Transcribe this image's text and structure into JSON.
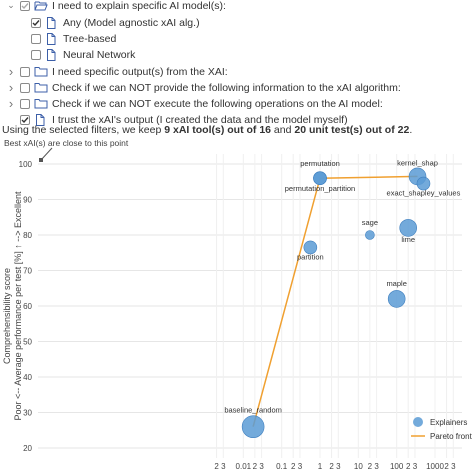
{
  "filters": {
    "rows": [
      {
        "indent": 0,
        "chevron": "expanded",
        "checkbox": "partial",
        "icon": "folder-open",
        "label": "I need to explain specific AI model(s):"
      },
      {
        "indent": 1,
        "chevron": "",
        "checkbox": "checked",
        "icon": "file",
        "label": "Any (Model agnostic xAI alg.)"
      },
      {
        "indent": 1,
        "chevron": "",
        "checkbox": "unchecked",
        "icon": "file",
        "label": "Tree-based"
      },
      {
        "indent": 1,
        "chevron": "",
        "checkbox": "unchecked",
        "icon": "file",
        "label": "Neural Network"
      },
      {
        "indent": 0,
        "chevron": "collapsed",
        "checkbox": "unchecked",
        "icon": "folder",
        "label": "I need specific output(s) from the XAI:"
      },
      {
        "indent": 0,
        "chevron": "collapsed",
        "checkbox": "unchecked",
        "icon": "folder",
        "label": "Check if we can NOT provide the following information to the xAI algorithm:"
      },
      {
        "indent": 0,
        "chevron": "collapsed",
        "checkbox": "unchecked",
        "icon": "folder",
        "label": "Check if we can NOT execute the following operations on the AI model:"
      },
      {
        "indent": 0,
        "chevron": "",
        "checkbox": "checked",
        "icon": "file",
        "label": "I trust the xAI's output (I created the data and the model myself)"
      }
    ]
  },
  "summary": {
    "prefix": "Using the selected filters, we keep ",
    "tools": "9 xAI tool(s) out of 16",
    "middle": " and ",
    "tests": "20 unit test(s) out of 22",
    "suffix": "."
  },
  "chart_data": {
    "type": "scatter",
    "annotation": "Best xAI(s) are close to this point",
    "ylabel_line1": "Comprehensibility score",
    "ylabel_line2": "Poor <--  Average performance per test [%] ↑ --> Excellent",
    "y_ticks": [
      "100",
      "90",
      "80",
      "70",
      "60",
      "50",
      "40",
      "30",
      "20"
    ],
    "ylim": [
      20,
      100
    ],
    "x_ticks": [
      "2",
      "3",
      "0.01",
      "2",
      "3",
      "0.1",
      "2",
      "3",
      "1",
      "2",
      "3",
      "10",
      "2",
      "3",
      "100",
      "2",
      "3",
      "1000",
      "2",
      "3"
    ],
    "x_scale": "log",
    "legend": {
      "explainers": "Explainers",
      "pareto": "Pareto front",
      "placement": "bottom-right"
    },
    "colors": {
      "points": "#5b9bd5",
      "pareto": "#f0a030"
    },
    "points": [
      {
        "name": "baseline_random",
        "x": 0.018,
        "y": 26,
        "size": "large"
      },
      {
        "name": "partition",
        "x": 0.56,
        "y": 76.5,
        "size": "small"
      },
      {
        "name": "permutation",
        "x": 1.0,
        "y": 96,
        "size": "small"
      },
      {
        "name": "permutation_partition",
        "x": 1.0,
        "y": 96,
        "size": "small"
      },
      {
        "name": "kernel_shap",
        "x": 350,
        "y": 96.5,
        "size": "medium"
      },
      {
        "name": "exact_shapley_values",
        "x": 500,
        "y": 94.5,
        "size": "small"
      },
      {
        "name": "sage",
        "x": 20,
        "y": 80,
        "size": "tiny"
      },
      {
        "name": "lime",
        "x": 200,
        "y": 82,
        "size": "medium"
      },
      {
        "name": "maple",
        "x": 100,
        "y": 62,
        "size": "medium"
      }
    ],
    "pareto_front": [
      {
        "x": 0.018,
        "y": 26
      },
      {
        "x": 1.0,
        "y": 96
      },
      {
        "x": 350,
        "y": 96.5
      }
    ]
  }
}
